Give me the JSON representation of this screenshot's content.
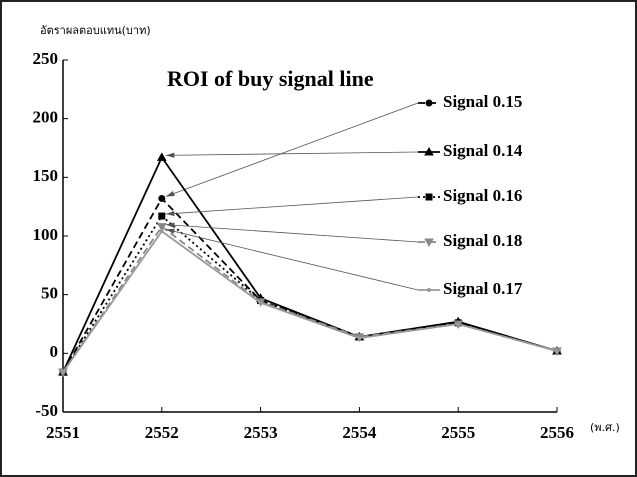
{
  "chart_data": {
    "type": "line",
    "title": "ROI of buy signal line",
    "y_label": "อัตราผลตอบแทน(บาท)",
    "x_label": "(พ.ศ.)",
    "x": [
      2551,
      2552,
      2553,
      2554,
      2555,
      2556
    ],
    "xlim": [
      2551,
      2556
    ],
    "xticks": [
      2551,
      2552,
      2553,
      2554,
      2555,
      2556
    ],
    "ylim": [
      -50,
      250
    ],
    "yticks": [
      -50,
      0,
      50,
      100,
      150,
      200,
      250
    ],
    "series": [
      {
        "name": "Signal 0.15",
        "color": "#000000",
        "dash": "dashed",
        "marker": "circle",
        "values": [
          -16,
          132,
          45,
          14,
          26,
          2
        ]
      },
      {
        "name": "Signal 0.14",
        "color": "#000000",
        "dash": "solid",
        "marker": "triangle",
        "values": [
          -16,
          167,
          47,
          14,
          27,
          2
        ]
      },
      {
        "name": "Signal 0.16",
        "color": "#000000",
        "dash": "dotted",
        "marker": "square",
        "values": [
          -16,
          117,
          45,
          14,
          26,
          2
        ]
      },
      {
        "name": "Signal 0.18",
        "color": "#888888",
        "dash": "dashed",
        "marker": "triangle-down",
        "values": [
          -16,
          108,
          44,
          14,
          25,
          2
        ]
      },
      {
        "name": "Signal 0.17",
        "color": "#999999",
        "dash": "solid",
        "marker": "none",
        "values": [
          -16,
          104,
          43,
          13,
          25,
          2
        ]
      }
    ]
  }
}
